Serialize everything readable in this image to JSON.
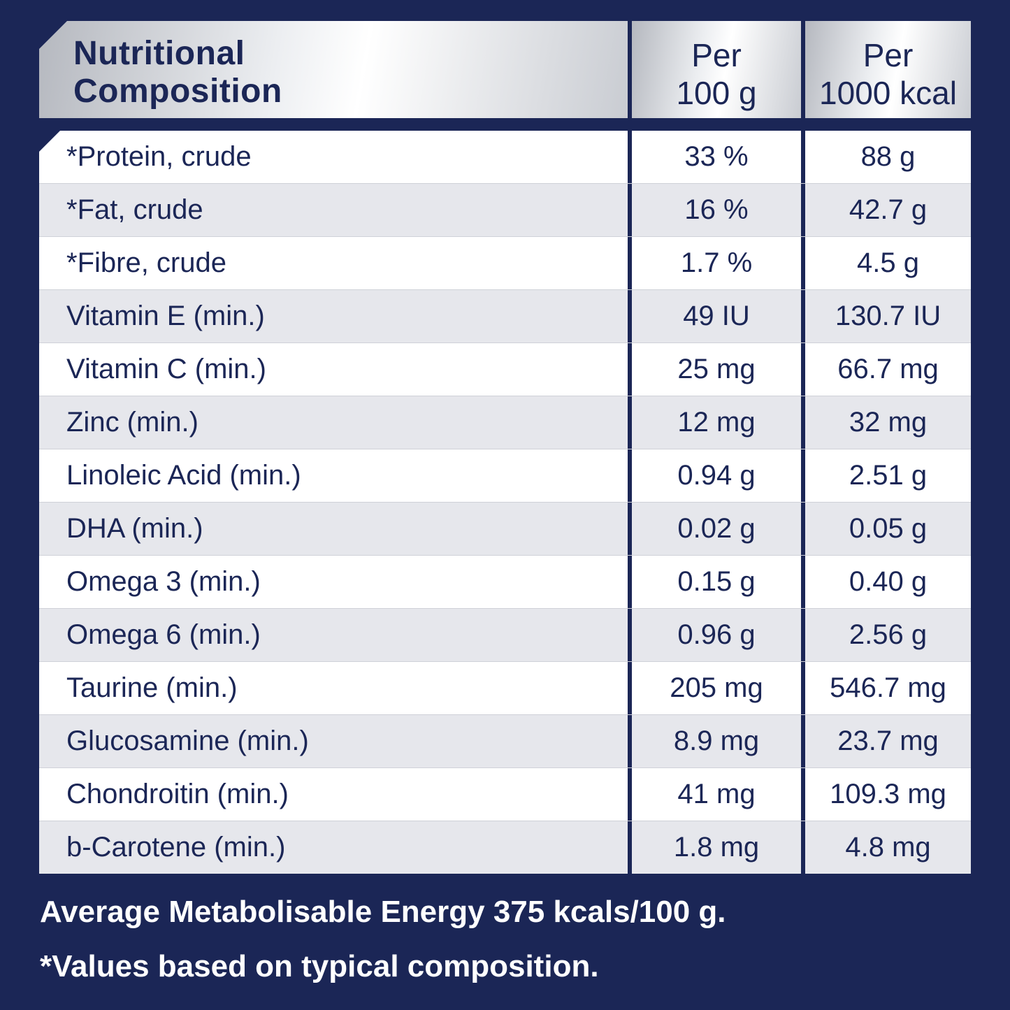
{
  "header": {
    "title_line1": "Nutritional",
    "title_line2": "Composition",
    "col2_line1": "Per",
    "col2_line2": "100 g",
    "col3_line1": "Per",
    "col3_line2": "1000 kcal"
  },
  "rows": [
    {
      "name": "*Protein, crude",
      "per100g": "33 %",
      "per1000kcal": "88 g"
    },
    {
      "name": "*Fat, crude",
      "per100g": "16 %",
      "per1000kcal": "42.7 g"
    },
    {
      "name": "*Fibre, crude",
      "per100g": "1.7 %",
      "per1000kcal": "4.5 g"
    },
    {
      "name": "Vitamin E (min.)",
      "per100g": "49 IU",
      "per1000kcal": "130.7 IU"
    },
    {
      "name": "Vitamin C (min.)",
      "per100g": "25 mg",
      "per1000kcal": "66.7 mg"
    },
    {
      "name": "Zinc (min.)",
      "per100g": "12 mg",
      "per1000kcal": "32 mg"
    },
    {
      "name": "Linoleic Acid (min.)",
      "per100g": "0.94 g",
      "per1000kcal": "2.51 g"
    },
    {
      "name": "DHA (min.)",
      "per100g": "0.02 g",
      "per1000kcal": "0.05 g"
    },
    {
      "name": "Omega 3 (min.)",
      "per100g": "0.15 g",
      "per1000kcal": "0.40 g"
    },
    {
      "name": "Omega 6 (min.)",
      "per100g": "0.96 g",
      "per1000kcal": "2.56 g"
    },
    {
      "name": "Taurine (min.)",
      "per100g": "205 mg",
      "per1000kcal": "546.7 mg"
    },
    {
      "name": "Glucosamine (min.)",
      "per100g": "8.9 mg",
      "per1000kcal": "23.7 mg"
    },
    {
      "name": "Chondroitin (min.)",
      "per100g": "41 mg",
      "per1000kcal": "109.3 mg"
    },
    {
      "name": "b-Carotene (min.)",
      "per100g": "1.8 mg",
      "per1000kcal": "4.8 mg"
    }
  ],
  "footer": {
    "energy_note": "Average Metabolisable Energy 375 kcals/100 g.",
    "typical_note": "*Values based on typical composition."
  },
  "colors": {
    "background": "#1b2656",
    "row_alt": "#e6e7ec",
    "row": "#ffffff"
  }
}
